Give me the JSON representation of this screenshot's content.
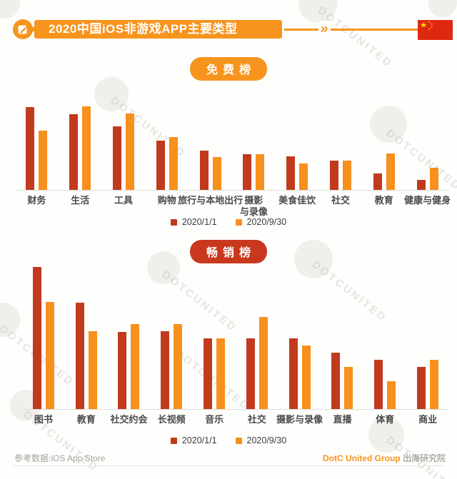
{
  "page": {
    "background": "#FEFEFD",
    "watermark_text": "DOTCUNITED"
  },
  "header": {
    "title": "2020中国iOS非游戏APP主要类型",
    "chevron_glyph": "»"
  },
  "colors": {
    "accent_orange": "#F7941E",
    "accent_red": "#C8381E",
    "bar_red": "#C13A1E",
    "bar_orange": "#F7901D",
    "flag_red": "#DE2910",
    "flag_yellow": "#FFDE00",
    "axis_gray": "#DCDCDA",
    "label_gray": "#4A4A4A"
  },
  "chart_data": [
    {
      "type": "bar",
      "title": "免费榜",
      "categories": [
        "财务",
        "生活",
        "工具",
        "购物",
        "旅行与本地出行",
        "摄影\n与录像",
        "美食佳饮",
        "社交",
        "教育",
        "健康与健身"
      ],
      "series": [
        {
          "name": "2020/1/1",
          "color": "#C13A1E",
          "values": [
            116,
            106,
            89,
            69,
            55,
            50,
            47,
            41,
            23,
            14
          ]
        },
        {
          "name": "2020/9/30",
          "color": "#F7901D",
          "values": [
            83,
            117,
            107,
            74,
            46,
            50,
            37,
            41,
            51,
            31
          ]
        }
      ],
      "unit": "relative bar height px (source shows no y-axis; values estimated from pixels)",
      "ylim": [
        0,
        126
      ],
      "legend_position": "bottom",
      "grid": false
    },
    {
      "type": "bar",
      "title": "畅销榜",
      "categories": [
        "图书",
        "教育",
        "社交约会",
        "长视频",
        "音乐",
        "社交",
        "摄影与录像",
        "直播",
        "体育",
        "商业"
      ],
      "series": [
        {
          "name": "2020/1/1",
          "color": "#C13A1E",
          "values": [
            199,
            149,
            108,
            109,
            99,
            99,
            99,
            79,
            69,
            59
          ]
        },
        {
          "name": "2020/9/30",
          "color": "#F7901D",
          "values": [
            150,
            109,
            119,
            119,
            99,
            129,
            89,
            59,
            39,
            69
          ]
        }
      ],
      "unit": "relative bar height px (source shows no y-axis; values estimated from pixels)",
      "ylim": [
        0,
        204
      ],
      "legend_position": "bottom",
      "grid": false
    }
  ],
  "footer": {
    "source": "参考数据:iOS App Store",
    "brand": "DotC United Group",
    "brand_suffix": "出海研究院"
  }
}
